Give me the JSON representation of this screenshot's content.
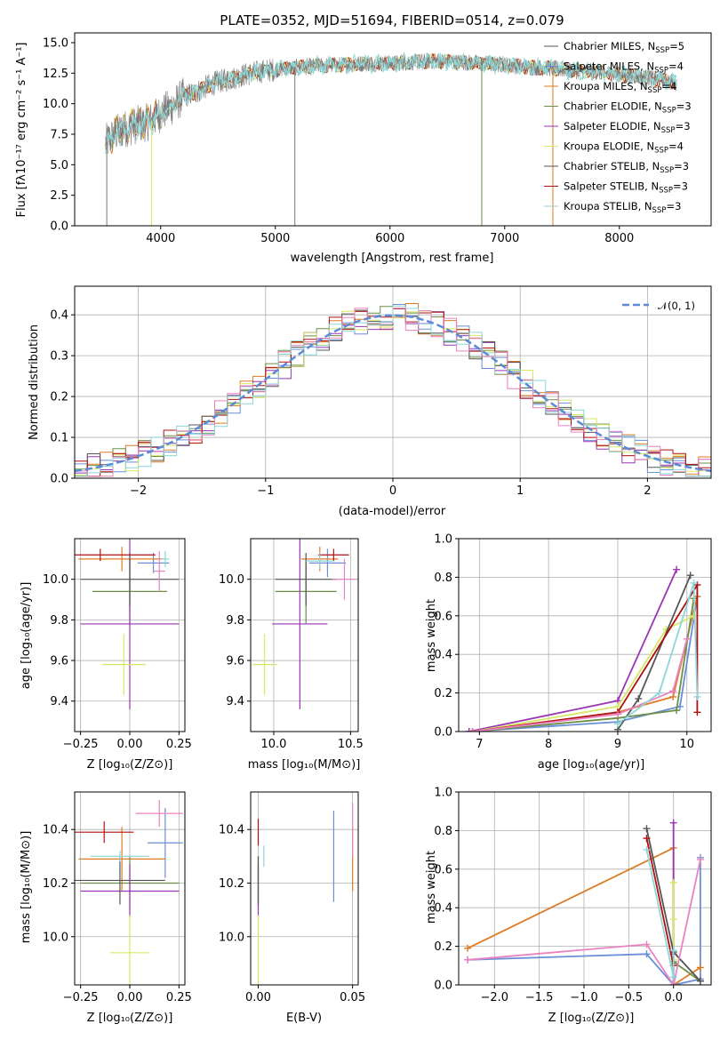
{
  "colors": [
    "#6a8fd8",
    "#e07b25",
    "#6b8f47",
    "#9a35b5",
    "#d6e865",
    "#555555",
    "#b01010",
    "#eb82c0",
    "#8dd6d8"
  ],
  "chart_data": [
    {
      "id": "spectrum",
      "type": "line",
      "title": "PLATE=0352, MJD=51694, FIBERID=0514, z=0.079",
      "xlabel": "wavelength [Angstrom, rest frame]",
      "ylabel": "Flux [fλ10⁻¹⁷ erg cm⁻² s⁻¹ A⁻¹]",
      "xlim": [
        3250,
        8800
      ],
      "ylim": [
        0,
        15.8
      ],
      "xticks": [
        "4000",
        "5000",
        "6000",
        "7000",
        "8000"
      ],
      "yticks": [
        "0.0",
        "2.5",
        "5.0",
        "7.5",
        "10.0",
        "12.5",
        "15.0"
      ],
      "grid": false,
      "legend_position": "right",
      "legend": [
        "Chabrier MILES, N_SSP=5",
        "Salpeter MILES, N_SSP=4",
        "Kroupa MILES, N_SSP=4",
        "Chabrier ELODIE, N_SSP=3",
        "Salpeter ELODIE, N_SSP=3",
        "Kroupa ELODIE, N_SSP=4",
        "Chabrier STELIB, N_SSP=3",
        "Salpeter STELIB, N_SSP=3",
        "Kroupa STELIB, N_SSP=3"
      ],
      "legend_colors": [
        "#555555",
        "#6a8fd8",
        "#e07b25",
        "#6b8f47",
        "#9a35b5",
        "#d6e865",
        "#555555",
        "#b01010",
        "#8dd6d8"
      ],
      "continuum": [
        [
          3520,
          6.8
        ],
        [
          3600,
          7.5
        ],
        [
          3700,
          8.0
        ],
        [
          3800,
          8.3
        ],
        [
          3900,
          8.5
        ],
        [
          4000,
          9.2
        ],
        [
          4100,
          9.8
        ],
        [
          4200,
          10.6
        ],
        [
          4300,
          10.9
        ],
        [
          4400,
          11.4
        ],
        [
          4500,
          11.8
        ],
        [
          4600,
          12.0
        ],
        [
          4700,
          12.3
        ],
        [
          4800,
          12.5
        ],
        [
          4900,
          12.7
        ],
        [
          5000,
          12.8
        ],
        [
          5200,
          13.0
        ],
        [
          5400,
          13.1
        ],
        [
          5600,
          13.2
        ],
        [
          5800,
          13.3
        ],
        [
          6000,
          13.3
        ],
        [
          6200,
          13.4
        ],
        [
          6400,
          13.5
        ],
        [
          6600,
          13.4
        ],
        [
          6800,
          13.3
        ],
        [
          7000,
          13.2
        ],
        [
          7200,
          13.0
        ],
        [
          7400,
          12.9
        ],
        [
          7600,
          12.7
        ],
        [
          7800,
          12.6
        ],
        [
          8000,
          12.4
        ],
        [
          8200,
          12.2
        ],
        [
          8400,
          11.9
        ],
        [
          8500,
          11.7
        ]
      ],
      "dips": [
        [
          3530,
          0.0
        ],
        [
          3920,
          0.0
        ],
        [
          5170,
          0.0
        ],
        [
          6800,
          0.0
        ],
        [
          7420,
          0.0
        ]
      ]
    },
    {
      "id": "residuals",
      "type": "bar",
      "xlabel": "(data-model)/error",
      "ylabel": "Normed distribution",
      "xlim": [
        -2.5,
        2.5
      ],
      "ylim": [
        0,
        0.47
      ],
      "xticks": [
        "−2",
        "−1",
        "0",
        "1",
        "2"
      ],
      "yticks": [
        "0.0",
        "0.1",
        "0.2",
        "0.3",
        "0.4"
      ],
      "grid": true,
      "legend_position": "top-right",
      "legend": [
        "𝒩(0, 1)"
      ],
      "bin_width": 0.1,
      "gaussian_mu": 0,
      "gaussian_sigma": 1
    },
    {
      "id": "age_vs_Z",
      "type": "scatter",
      "xlabel": "Z [log₁₀(Z/Z⊙)]",
      "ylabel": "age  [log₁₀(age/yr)]",
      "xlim": [
        -0.28,
        0.28
      ],
      "ylim": [
        9.25,
        10.2
      ],
      "xticks": [
        "−0.25",
        "0.00",
        "0.25"
      ],
      "yticks": [
        "9.4",
        "9.6",
        "9.8",
        "10.0"
      ],
      "grid": true,
      "points": [
        {
          "x": 0.12,
          "y": 10.08,
          "xerr": 0.08,
          "yerr": 0.05,
          "color": "#6a8fd8"
        },
        {
          "x": -0.04,
          "y": 10.1,
          "xerr": 0.22,
          "yerr": 0.06,
          "color": "#e07b25"
        },
        {
          "x": 0.0,
          "y": 9.94,
          "xerr": 0.19,
          "yerr": 0.16,
          "color": "#6b8f47"
        },
        {
          "x": 0.0,
          "y": 9.78,
          "xerr": 0.25,
          "yerr": 0.42,
          "color": "#9a35b5"
        },
        {
          "x": -0.03,
          "y": 9.58,
          "xerr": 0.11,
          "yerr": 0.15,
          "color": "#d6e865"
        },
        {
          "x": 0.0,
          "y": 10.0,
          "xerr": 0.25,
          "yerr": 0.13,
          "color": "#555555"
        },
        {
          "x": -0.15,
          "y": 10.12,
          "xerr": 0.28,
          "yerr": 0.03,
          "color": "#b01010"
        },
        {
          "x": 0.15,
          "y": 10.04,
          "xerr": 0.03,
          "yerr": 0.1,
          "color": "#eb82c0"
        },
        {
          "x": 0.18,
          "y": 10.1,
          "xerr": 0.02,
          "yerr": 0.04,
          "color": "#8dd6d8"
        }
      ]
    },
    {
      "id": "age_vs_mass",
      "type": "scatter",
      "xlabel": "mass [log₁₀(M/M⊙)]",
      "ylabel": "",
      "xlim": [
        9.85,
        10.55
      ],
      "ylim": [
        9.25,
        10.2
      ],
      "xticks": [
        "10.0",
        "10.5"
      ],
      "yticks": [
        "9.4",
        "9.6",
        "9.8",
        "10.0"
      ],
      "grid": true,
      "points": [
        {
          "x": 10.35,
          "y": 10.08,
          "xerr": 0.12,
          "yerr": 0.07,
          "color": "#6a8fd8"
        },
        {
          "x": 10.3,
          "y": 10.1,
          "xerr": 0.12,
          "yerr": 0.06,
          "color": "#e07b25"
        },
        {
          "x": 10.21,
          "y": 9.94,
          "xerr": 0.2,
          "yerr": 0.16,
          "color": "#6b8f47"
        },
        {
          "x": 10.17,
          "y": 9.78,
          "xerr": 0.18,
          "yerr": 0.42,
          "color": "#9a35b5"
        },
        {
          "x": 9.94,
          "y": 9.58,
          "xerr": 0.08,
          "yerr": 0.15,
          "color": "#d6e865"
        },
        {
          "x": 10.21,
          "y": 10.0,
          "xerr": 0.2,
          "yerr": 0.13,
          "color": "#555555"
        },
        {
          "x": 10.39,
          "y": 10.12,
          "xerr": 0.1,
          "yerr": 0.03,
          "color": "#b01010"
        },
        {
          "x": 10.46,
          "y": 10.0,
          "xerr": 0.08,
          "yerr": 0.1,
          "color": "#eb82c0"
        },
        {
          "x": 10.3,
          "y": 10.09,
          "xerr": 0.09,
          "yerr": 0.04,
          "color": "#8dd6d8"
        }
      ]
    },
    {
      "id": "weight_vs_age",
      "type": "line",
      "xlabel": "age  [log₁₀(age/yr)]",
      "ylabel": "mass weight",
      "xlim": [
        6.7,
        10.35
      ],
      "ylim": [
        0,
        1
      ],
      "xticks": [
        "7",
        "8",
        "9",
        "10"
      ],
      "yticks": [
        "0.0",
        "0.2",
        "0.4",
        "0.6",
        "0.8",
        "1.0"
      ],
      "grid": true,
      "series": [
        {
          "color": "#6a8fd8",
          "points": [
            [
              6.85,
              0.0
            ],
            [
              9.0,
              0.05
            ],
            [
              9.9,
              0.13
            ],
            [
              10.15,
              0.7
            ]
          ]
        },
        {
          "color": "#e07b25",
          "points": [
            [
              6.9,
              0.0
            ],
            [
              9.0,
              0.1
            ],
            [
              9.8,
              0.18
            ],
            [
              10.15,
              0.7
            ]
          ]
        },
        {
          "color": "#6b8f47",
          "points": [
            [
              6.9,
              0.0
            ],
            [
              9.0,
              0.07
            ],
            [
              9.85,
              0.11
            ],
            [
              10.1,
              0.69
            ]
          ]
        },
        {
          "color": "#9a35b5",
          "points": [
            [
              6.85,
              0.0
            ],
            [
              9.0,
              0.16
            ],
            [
              9.85,
              0.84
            ]
          ]
        },
        {
          "color": "#d6e865",
          "points": [
            [
              6.9,
              0.0
            ],
            [
              9.0,
              0.13
            ],
            [
              9.7,
              0.53
            ],
            [
              10.1,
              0.6
            ]
          ]
        },
        {
          "color": "#555555",
          "points": [
            [
              9.0,
              0.01
            ],
            [
              9.3,
              0.17
            ],
            [
              10.05,
              0.81
            ]
          ]
        },
        {
          "color": "#b01010",
          "points": [
            [
              6.9,
              0.0
            ],
            [
              9.0,
              0.1
            ],
            [
              10.15,
              0.76
            ],
            [
              10.15,
              0.1
            ]
          ]
        },
        {
          "color": "#eb82c0",
          "points": [
            [
              6.9,
              0.0
            ],
            [
              9.0,
              0.09
            ],
            [
              9.8,
              0.21
            ],
            [
              10.0,
              0.48
            ]
          ]
        },
        {
          "color": "#8dd6d8",
          "points": [
            [
              9.0,
              0.04
            ],
            [
              9.6,
              0.2
            ],
            [
              10.1,
              0.77
            ],
            [
              10.15,
              0.18
            ]
          ]
        }
      ]
    },
    {
      "id": "mass_vs_Z",
      "type": "scatter",
      "xlabel": "Z [log₁₀(Z/Z⊙)]",
      "ylabel": "mass [log₁₀(M/M⊙)]",
      "xlim": [
        -0.28,
        0.28
      ],
      "ylim": [
        9.82,
        10.54
      ],
      "xticks": [
        "−0.25",
        "0.00",
        "0.25"
      ],
      "yticks": [
        "10.0",
        "10.2",
        "10.4"
      ],
      "grid": true,
      "points": [
        {
          "x": 0.18,
          "y": 10.35,
          "xerr": 0.09,
          "yerr": 0.13,
          "color": "#6a8fd8"
        },
        {
          "x": -0.04,
          "y": 10.29,
          "xerr": 0.22,
          "yerr": 0.12,
          "color": "#e07b25"
        },
        {
          "x": 0.0,
          "y": 10.2,
          "xerr": 0.25,
          "yerr": 0.1,
          "color": "#6b8f47"
        },
        {
          "x": 0.0,
          "y": 10.17,
          "xerr": 0.25,
          "yerr": 0.1,
          "color": "#9a35b5"
        },
        {
          "x": 0.0,
          "y": 9.94,
          "xerr": 0.1,
          "yerr": 0.14,
          "color": "#d6e865"
        },
        {
          "x": -0.05,
          "y": 10.21,
          "xerr": 0.23,
          "yerr": 0.09,
          "color": "#555555"
        },
        {
          "x": -0.13,
          "y": 10.39,
          "xerr": 0.15,
          "yerr": 0.04,
          "color": "#b01010"
        },
        {
          "x": 0.15,
          "y": 10.46,
          "xerr": 0.12,
          "yerr": 0.05,
          "color": "#eb82c0"
        },
        {
          "x": -0.05,
          "y": 10.3,
          "xerr": 0.15,
          "yerr": 0.02,
          "color": "#8dd6d8"
        }
      ]
    },
    {
      "id": "mass_vs_ebv",
      "type": "scatter",
      "xlabel": "E(B-V)",
      "ylabel": "",
      "xlim": [
        -0.004,
        0.053
      ],
      "ylim": [
        9.82,
        10.54
      ],
      "xticks": [
        "0.00",
        "0.05"
      ],
      "yticks": [
        "10.0",
        "10.2",
        "10.4"
      ],
      "grid": true,
      "points": [
        {
          "x": 0.04,
          "y": 10.3,
          "xerr": 0,
          "yerr": 0.17,
          "color": "#6a8fd8"
        },
        {
          "x": 0.05,
          "y": 10.29,
          "xerr": 0,
          "yerr": 0.12,
          "color": "#e07b25"
        },
        {
          "x": 0.0,
          "y": 10.2,
          "xerr": 0,
          "yerr": 0.1,
          "color": "#6b8f47"
        },
        {
          "x": 0.0,
          "y": 10.17,
          "xerr": 0,
          "yerr": 0.1,
          "color": "#9a35b5"
        },
        {
          "x": 0.0,
          "y": 9.94,
          "xerr": 0,
          "yerr": 0.14,
          "color": "#d6e865"
        },
        {
          "x": 0.0,
          "y": 10.21,
          "xerr": 0,
          "yerr": 0.09,
          "color": "#555555"
        },
        {
          "x": 0.0,
          "y": 10.39,
          "xerr": 0,
          "yerr": 0.05,
          "color": "#b01010"
        },
        {
          "x": 0.05,
          "y": 10.4,
          "xerr": 0,
          "yerr": 0.1,
          "color": "#eb82c0"
        },
        {
          "x": 0.003,
          "y": 10.3,
          "xerr": 0,
          "yerr": 0.04,
          "color": "#8dd6d8"
        }
      ]
    },
    {
      "id": "weight_vs_Z",
      "type": "line",
      "xlabel": "Z [log₁₀(Z/Z⊙)]",
      "ylabel": "mass weight",
      "xlim": [
        -2.4,
        0.42
      ],
      "ylim": [
        0,
        1
      ],
      "xticks": [
        "−2.0",
        "−1.5",
        "−1.0",
        "−0.5",
        "0.0"
      ],
      "yticks": [
        "0.0",
        "0.2",
        "0.4",
        "0.6",
        "0.8",
        "1.0"
      ],
      "grid": true,
      "series": [
        {
          "color": "#6a8fd8",
          "points": [
            [
              -2.3,
              0.13
            ],
            [
              -0.3,
              0.16
            ],
            [
              0.0,
              0.0
            ],
            [
              0.3,
              0.03
            ],
            [
              0.3,
              0.66
            ]
          ]
        },
        {
          "color": "#e07b25",
          "points": [
            [
              -2.3,
              0.19
            ],
            [
              0.0,
              0.71
            ],
            [
              0.0,
              0.0
            ],
            [
              0.3,
              0.09
            ]
          ]
        },
        {
          "color": "#6b8f47",
          "points": [
            [
              0.0,
              0.11
            ],
            [
              0.0,
              0.12
            ],
            [
              0.3,
              0.02
            ]
          ]
        },
        {
          "color": "#9a35b5",
          "points": [
            [
              0.0,
              0.84
            ],
            [
              0.0,
              0.16
            ],
            [
              0.0,
              0.0
            ]
          ]
        },
        {
          "color": "#d6e865",
          "points": [
            [
              0.0,
              0.53
            ],
            [
              0.0,
              0.13
            ],
            [
              0.0,
              0.34
            ]
          ]
        },
        {
          "color": "#555555",
          "points": [
            [
              -0.3,
              0.81
            ],
            [
              0.0,
              0.17
            ],
            [
              0.3,
              0.02
            ]
          ]
        },
        {
          "color": "#b01010",
          "points": [
            [
              -0.3,
              0.76
            ],
            [
              0.0,
              0.1
            ]
          ]
        },
        {
          "color": "#eb82c0",
          "points": [
            [
              -2.3,
              0.13
            ],
            [
              -0.3,
              0.21
            ],
            [
              0.0,
              0.0
            ],
            [
              0.3,
              0.65
            ]
          ]
        },
        {
          "color": "#8dd6d8",
          "points": [
            [
              -0.3,
              0.7
            ],
            [
              0.0,
              0.04
            ],
            [
              0.0,
              0.18
            ]
          ]
        }
      ]
    }
  ]
}
